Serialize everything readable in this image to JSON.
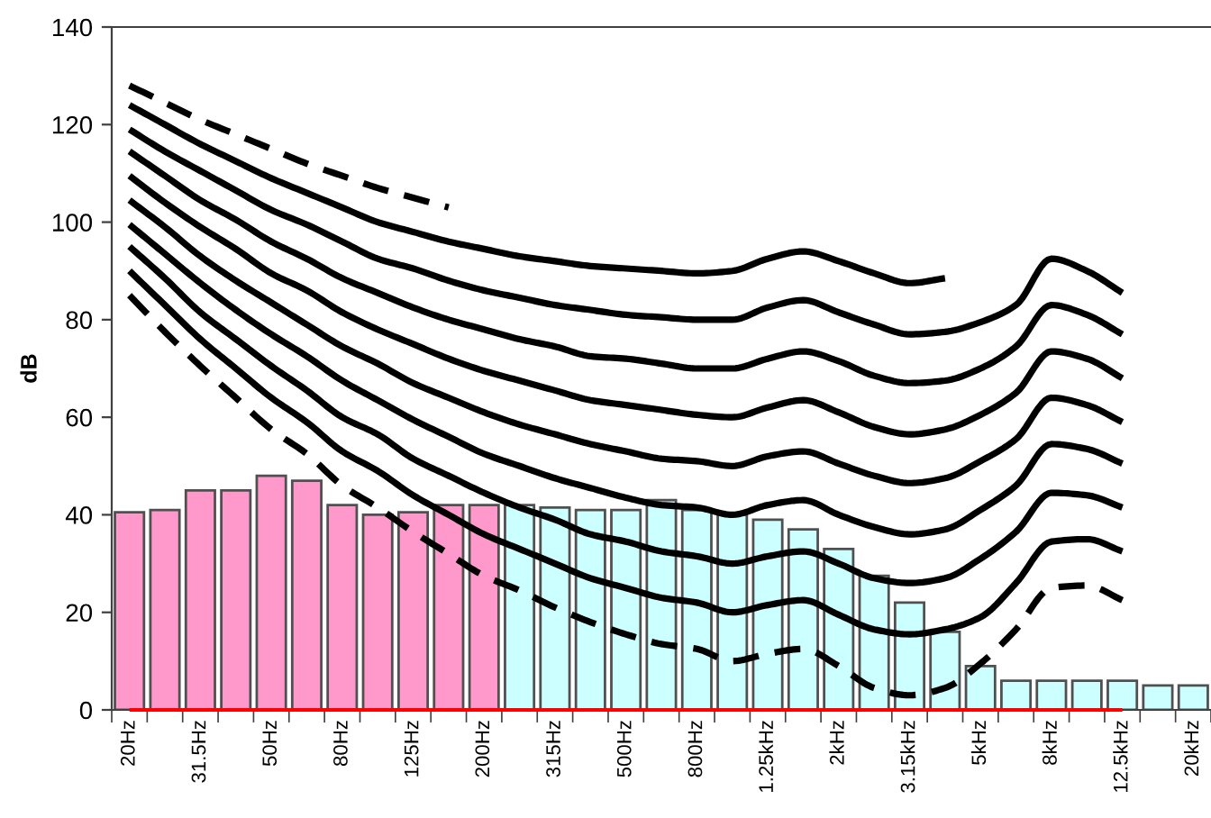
{
  "chart_data": {
    "type": "bar",
    "ylabel": "dB",
    "ylim": [
      0,
      140
    ],
    "yticks": [
      0,
      20,
      40,
      60,
      80,
      100,
      120,
      140
    ],
    "grid": false,
    "marker": "none",
    "categories": [
      "20Hz",
      null,
      "31.5Hz",
      null,
      "50Hz",
      null,
      "80Hz",
      null,
      "125Hz",
      null,
      "200Hz",
      null,
      "315Hz",
      null,
      "500Hz",
      null,
      "800Hz",
      null,
      "1.25kHz",
      null,
      "2kHz",
      null,
      "3.15kHz",
      null,
      "5kHz",
      null,
      "8kHz",
      null,
      "12.5kHz",
      null,
      "20kHz"
    ],
    "series": [
      {
        "colors": [
          "#ff99cc",
          "#ff99cc",
          "#ff99cc",
          "#ff99cc",
          "#ff99cc",
          "#ff99cc",
          "#ff99cc",
          "#ff99cc",
          "#ff99cc",
          "#ff99cc",
          "#ff99cc",
          "#ccffff",
          "#ccffff",
          "#ccffff",
          "#ccffff",
          "#ccffff",
          "#ccffff",
          "#ccffff",
          "#ccffff",
          "#ccffff",
          "#ccffff",
          "#ccffff",
          "#ccffff",
          "#ccffff",
          "#ccffff",
          "#ccffff",
          "#ccffff",
          "#ccffff",
          "#ccffff",
          "#ccffff",
          "#ccffff"
        ],
        "values": [
          40.5,
          41,
          45,
          45,
          48,
          47,
          42,
          40,
          40.5,
          42,
          42,
          42,
          41.5,
          41,
          41,
          43,
          41,
          40,
          39,
          37,
          33,
          27.5,
          22,
          16,
          9,
          6,
          6,
          6,
          6,
          5,
          5
        ]
      },
      {
        "type": "line",
        "color": "#ff0000",
        "line_style": "solid",
        "values": [
          0,
          0,
          0,
          0,
          0,
          0,
          0,
          0,
          0,
          0,
          0,
          0,
          0,
          0,
          0,
          0,
          0,
          0,
          0,
          0,
          0,
          0,
          0,
          0,
          0,
          0,
          0,
          0,
          0,
          null,
          null
        ]
      },
      {
        "type": "line",
        "color": "#000000",
        "line_style": "dashed",
        "values": [
          128,
          124.5,
          121,
          118,
          115,
          112,
          109.5,
          107,
          105,
          103,
          null,
          null,
          null,
          null,
          null,
          null,
          null,
          null,
          null,
          null,
          null,
          null,
          null,
          null,
          null,
          null,
          null,
          null,
          null,
          null,
          null
        ]
      },
      {
        "type": "line",
        "color": "#000000",
        "line_style": "solid",
        "values": [
          124,
          120,
          116,
          112.5,
          109,
          106,
          103,
          100,
          98,
          96,
          94.5,
          93,
          92,
          91,
          90.5,
          90,
          89.5,
          90,
          92.5,
          94,
          92,
          89.5,
          87.5,
          88.5,
          null,
          null,
          null,
          null,
          null,
          null,
          null
        ]
      },
      {
        "type": "line",
        "color": "#000000",
        "line_style": "solid",
        "values": [
          119,
          114.5,
          110.5,
          106.5,
          102.5,
          99.5,
          96,
          92.5,
          90.5,
          88,
          86,
          84.5,
          83,
          82,
          81,
          80.5,
          80,
          80,
          82.5,
          84,
          81.5,
          79,
          77,
          77.5,
          79.5,
          83,
          92.5,
          90,
          85.5,
          null,
          null
        ]
      },
      {
        "type": "line",
        "color": "#000000",
        "line_style": "solid",
        "values": [
          114.5,
          109.5,
          104.5,
          100.5,
          96,
          92.5,
          88.5,
          85.5,
          82.5,
          80,
          78,
          76,
          74.5,
          72.5,
          72,
          71,
          70,
          70,
          72,
          73.5,
          71.5,
          68.5,
          67,
          67.5,
          70,
          74.5,
          83,
          81,
          77,
          null,
          null
        ]
      },
      {
        "type": "line",
        "color": "#000000",
        "line_style": "solid",
        "values": [
          109.5,
          104,
          99,
          94.5,
          89.5,
          86,
          81.5,
          78,
          75,
          72,
          69.5,
          67.5,
          65.5,
          63.5,
          62.5,
          61.5,
          60.5,
          60,
          62,
          63.5,
          61,
          58,
          56.5,
          57.5,
          60.5,
          65,
          73.5,
          72,
          68,
          null,
          null
        ]
      },
      {
        "type": "line",
        "color": "#000000",
        "line_style": "solid",
        "values": [
          104.5,
          99,
          93,
          88,
          83.5,
          79,
          74.5,
          71,
          67,
          64,
          61,
          58.5,
          56.5,
          54.5,
          53,
          51.5,
          51,
          50,
          52,
          53,
          50.5,
          48,
          46.5,
          47.5,
          51,
          55.5,
          64,
          62.5,
          59,
          null,
          null
        ]
      },
      {
        "type": "line",
        "color": "#000000",
        "line_style": "solid",
        "values": [
          99.5,
          93.5,
          87.5,
          82,
          77,
          72.5,
          67.5,
          63.5,
          59.5,
          56,
          52.5,
          50,
          47.5,
          45.5,
          43.5,
          42,
          41.5,
          40,
          42,
          43,
          40,
          37.5,
          36,
          37,
          41,
          46,
          54.5,
          53.5,
          50.5,
          null,
          null
        ]
      },
      {
        "type": "line",
        "color": "#000000",
        "line_style": "solid",
        "values": [
          95,
          88.5,
          81.5,
          76,
          70.5,
          65.5,
          60,
          56.5,
          51.5,
          48,
          44.5,
          41.5,
          39,
          36,
          34.5,
          32.5,
          31.5,
          30,
          31.5,
          32.5,
          30,
          27,
          26,
          27,
          31,
          36.5,
          44.5,
          44,
          41.5,
          null,
          null
        ]
      },
      {
        "type": "line",
        "color": "#000000",
        "line_style": "solid",
        "values": [
          90,
          83,
          76,
          70,
          64,
          59,
          53,
          49,
          44,
          40,
          36,
          33,
          30,
          27,
          25,
          23,
          22,
          20,
          21.5,
          22.5,
          19.5,
          16.5,
          15.5,
          16.5,
          19,
          26,
          34.5,
          35,
          32.5,
          null,
          null
        ]
      },
      {
        "type": "line",
        "color": "#000000",
        "line_style": "dashed",
        "values": [
          85,
          77.5,
          70.5,
          64,
          57.5,
          52.5,
          46,
          41.5,
          36.5,
          32,
          27.5,
          24.5,
          21,
          18,
          15.5,
          13.5,
          12.5,
          10,
          11.5,
          12.5,
          9,
          4.5,
          3,
          4.5,
          9.5,
          16.5,
          25,
          25.5,
          22.5,
          null,
          null
        ]
      }
    ]
  }
}
